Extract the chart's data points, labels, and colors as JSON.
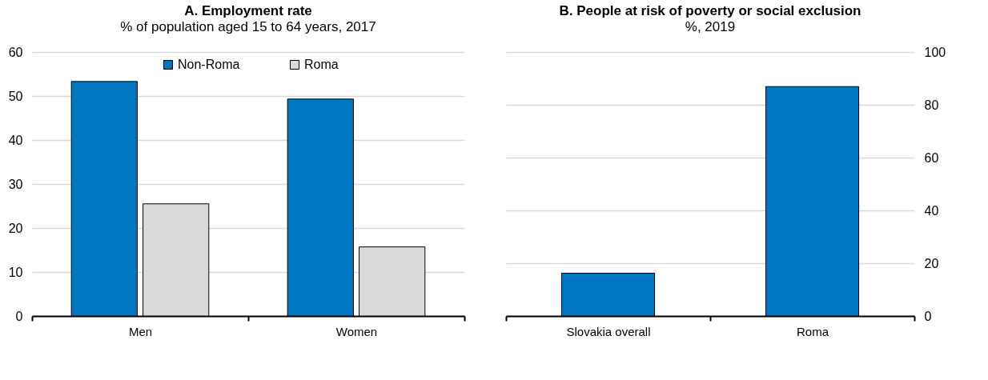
{
  "chart_data": [
    {
      "type": "bar",
      "title": "A. Employment rate",
      "subtitle": "% of population aged 15  to 64 years, 2017",
      "categories": [
        "Men",
        "Women"
      ],
      "series": [
        {
          "name": "Non-Roma",
          "color": "#0077c0",
          "values": [
            53.3,
            49.3
          ]
        },
        {
          "name": "Roma",
          "color": "#d9d9d9",
          "values": [
            25.5,
            15.7
          ]
        }
      ],
      "ylim": [
        0,
        60
      ],
      "yticks": [
        0,
        10,
        20,
        30,
        40,
        50,
        60
      ],
      "grid": "y",
      "legend": "top"
    },
    {
      "type": "bar",
      "title": "B. People at risk of poverty or social exclusion",
      "subtitle": "%, 2019",
      "categories": [
        "Slovakia overall",
        "Roma"
      ],
      "series": [
        {
          "color": "#0077c0",
          "values": [
            16.2,
            86.9
          ],
          "axis": "y2"
        }
      ],
      "y2lim": [
        0,
        100
      ],
      "y2ticks": [
        0,
        20,
        40,
        60,
        80,
        100
      ],
      "grid": "y"
    }
  ]
}
